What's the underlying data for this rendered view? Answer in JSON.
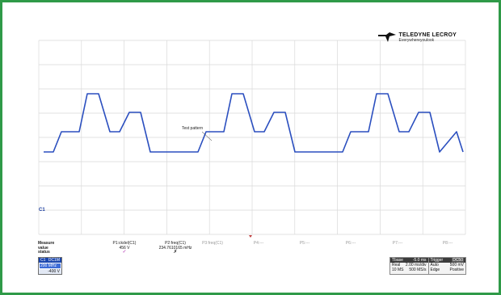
{
  "logo": {
    "brand": "TELEDYNE LECROY",
    "tagline": "Everywhereyoulook"
  },
  "trace_label": "Test pattern",
  "channel_marker": "C1",
  "colors": {
    "trace": "#2b4fbf",
    "grid": "#d9d9d9",
    "frame": "#2f9a48",
    "channel": "#1b46ad"
  },
  "measure": {
    "header": [
      "Measure",
      "value",
      "status"
    ],
    "params": [
      {
        "name": "P1:ckdel(C1)",
        "value": "456 V",
        "status": "✓",
        "status_icon": "check-icon",
        "active": true
      },
      {
        "name": "P2:freq(C1)",
        "value": "234.7610165 mHz",
        "status": "✗",
        "status_icon": "cross-icon",
        "active": true
      },
      {
        "name": "P3:freq(C1)",
        "value": "",
        "status": "",
        "active": false
      },
      {
        "name": "P4:---",
        "value": "",
        "status": "",
        "active": false
      },
      {
        "name": "P5:---",
        "value": "",
        "status": "",
        "active": false
      },
      {
        "name": "P6:---",
        "value": "",
        "status": "",
        "active": false
      },
      {
        "name": "P7:---",
        "value": "",
        "status": "",
        "active": false
      },
      {
        "name": "P8:---",
        "value": "",
        "status": "",
        "active": false
      }
    ]
  },
  "channel_box": {
    "label": "C1",
    "mode": "DC1M",
    "bw_label": "200 MHz",
    "bw_value": "",
    "offset": "-400 V"
  },
  "timebase": {
    "label": "Tbase",
    "delay": "-5.0 ms",
    "scale": "2.00 ms/div",
    "points": "10 MS",
    "rate": "500 MS/s",
    "trigger_label": "Trigger",
    "trigger_tag": "DC50",
    "trig_type": "Auto",
    "trig_level": "500 mV",
    "trig_src": "Edge",
    "trig_slope": "Positive"
  }
}
